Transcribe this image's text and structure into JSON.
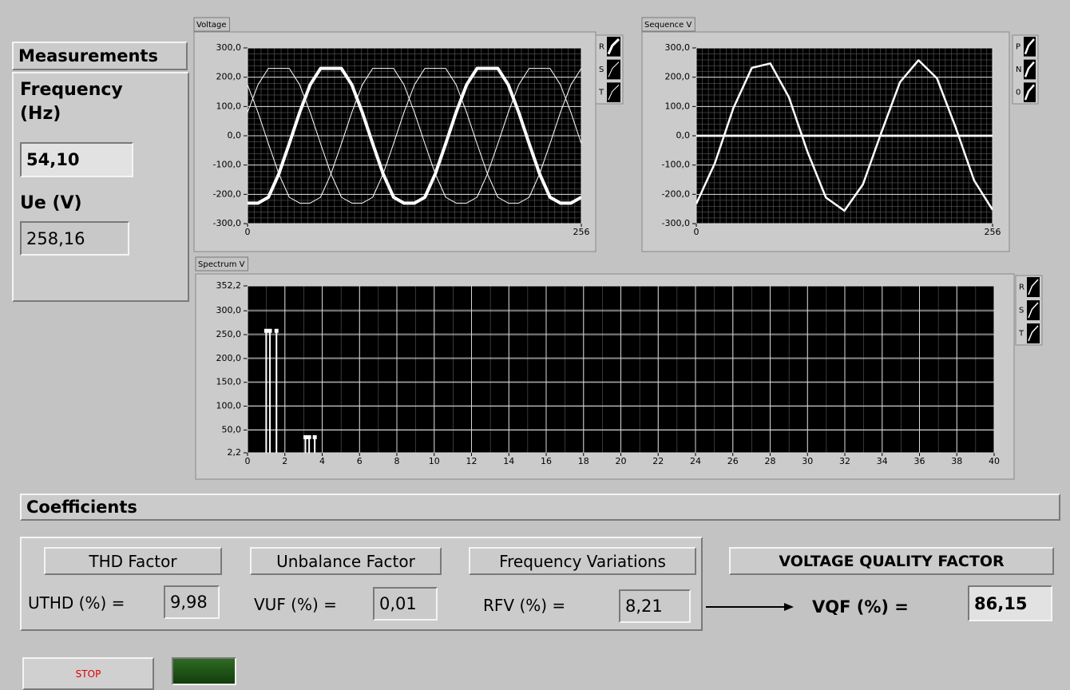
{
  "measurements": {
    "title": "Measurements",
    "frequency": {
      "label": "Frequency (Hz)",
      "value": "54,10"
    },
    "ue": {
      "label": "Ue (V)",
      "value": "258,16"
    }
  },
  "coefficients": {
    "title": "Coefficients",
    "thd": {
      "title": "THD Factor",
      "label": "UTHD (%) =",
      "value": "9,98"
    },
    "vuf": {
      "title": "Unbalance Factor",
      "label": "VUF (%) =",
      "value": "0,01"
    },
    "rfv": {
      "title": "Frequency Variations",
      "label": "RFV (%) =",
      "value": "8,21"
    },
    "vqf": {
      "title": "VOLTAGE QUALITY FACTOR",
      "label": "VQF (%) =",
      "value": "86,15"
    }
  },
  "stop_button": "STOP",
  "chart_data": [
    {
      "type": "line",
      "title": "Voltage",
      "x": [
        0,
        8,
        16,
        24,
        32,
        40,
        48,
        56,
        64,
        72,
        80,
        88,
        96,
        104,
        112,
        120,
        128,
        136,
        144,
        152,
        160,
        168,
        176,
        184,
        192,
        200,
        208,
        216,
        224,
        232,
        240,
        248,
        256
      ],
      "xlim": [
        0,
        256
      ],
      "xticks": [
        0,
        256
      ],
      "ylim": [
        -300,
        300
      ],
      "yticks": [
        {
          "value": -300,
          "label": "-300,0"
        },
        {
          "value": -200,
          "label": "-200,0"
        },
        {
          "value": -100,
          "label": "-100,0"
        },
        {
          "value": 0,
          "label": "0,0"
        },
        {
          "value": 100,
          "label": "100,0"
        },
        {
          "value": 200,
          "label": "200,0"
        },
        {
          "value": 300,
          "label": "300,0"
        }
      ],
      "grid": true,
      "series": [
        {
          "name": "R",
          "color": "#ffffff",
          "line_width": 4,
          "values": [
            -230,
            -230,
            -210,
            -130,
            -27,
            80,
            174,
            230,
            230,
            230,
            174,
            80,
            -27,
            -130,
            -210,
            -230,
            -230,
            -210,
            -130,
            -27,
            80,
            174,
            230,
            230,
            230,
            174,
            80,
            -27,
            -130,
            -210,
            -230,
            -230,
            -210
          ]
        },
        {
          "name": "S",
          "color": "#ffffff",
          "line_width": 1,
          "values": [
            174,
            80,
            -27,
            -130,
            -210,
            -230,
            -230,
            -210,
            -130,
            -27,
            80,
            174,
            230,
            230,
            230,
            174,
            80,
            -27,
            -130,
            -210,
            -230,
            -230,
            -210,
            -130,
            -27,
            80,
            174,
            230,
            230,
            230,
            174,
            80,
            -27
          ]
        },
        {
          "name": "T",
          "color": "#ffffff",
          "line_width": 1,
          "values": [
            80,
            174,
            230,
            230,
            230,
            174,
            80,
            -27,
            -130,
            -210,
            -230,
            -230,
            -210,
            -130,
            -27,
            80,
            174,
            230,
            230,
            230,
            174,
            80,
            -27,
            -130,
            -210,
            -230,
            -230,
            -210,
            -130,
            -27,
            80,
            174,
            230
          ]
        }
      ]
    },
    {
      "type": "line",
      "title": "Sequence V",
      "x": [
        0,
        16,
        32,
        48,
        64,
        80,
        96,
        112,
        128,
        144,
        160,
        176,
        192,
        208,
        224,
        240,
        256
      ],
      "xlim": [
        0,
        256
      ],
      "xticks": [
        0,
        256
      ],
      "ylim": [
        -300,
        300
      ],
      "yticks": [
        {
          "value": -300,
          "label": "-300,0"
        },
        {
          "value": -200,
          "label": "-200,0"
        },
        {
          "value": -100,
          "label": "-100,0"
        },
        {
          "value": 0,
          "label": "0,0"
        },
        {
          "value": 100,
          "label": "100,0"
        },
        {
          "value": 200,
          "label": "200,0"
        },
        {
          "value": 300,
          "label": "300,0"
        }
      ],
      "grid": true,
      "series": [
        {
          "name": "P",
          "color": "#ffffff",
          "line_width": 2.5,
          "values": [
            -232,
            -94,
            94,
            232,
            247,
            132,
            -54,
            -211,
            -256,
            -166,
            12,
            183,
            258,
            196,
            30,
            -152,
            -253
          ]
        },
        {
          "name": "N",
          "color": "#ffffff",
          "line_width": 2.5,
          "values": [
            0,
            0,
            0,
            0,
            0,
            0,
            0,
            0,
            0,
            0,
            0,
            0,
            0,
            0,
            0,
            0,
            0
          ]
        },
        {
          "name": "0",
          "color": "#ffffff",
          "line_width": 2.5,
          "values": [
            0,
            0,
            0,
            0,
            0,
            0,
            0,
            0,
            0,
            0,
            0,
            0,
            0,
            0,
            0,
            0,
            0
          ]
        }
      ]
    },
    {
      "type": "bar",
      "title": "Spectrum V",
      "x": [
        1,
        1.2,
        1.55,
        3.1,
        3.3,
        3.6
      ],
      "xlim": [
        0,
        40
      ],
      "xticks": [
        0,
        2,
        4,
        6,
        8,
        10,
        12,
        14,
        16,
        18,
        20,
        22,
        24,
        26,
        28,
        30,
        32,
        34,
        36,
        38,
        40
      ],
      "ylim": [
        2.2,
        352.2
      ],
      "yticks": [
        {
          "value": 2.2,
          "label": "2,2"
        },
        {
          "value": 50,
          "label": "50,0"
        },
        {
          "value": 100,
          "label": "100,0"
        },
        {
          "value": 150,
          "label": "150,0"
        },
        {
          "value": 200,
          "label": "200,0"
        },
        {
          "value": 250,
          "label": "250,0"
        },
        {
          "value": 300,
          "label": "300,0"
        },
        {
          "value": 352.2,
          "label": "352,2"
        }
      ],
      "grid": true,
      "series": [
        {
          "name": "R",
          "color": "#ffffff",
          "values": [
            258,
            null,
            null,
            35,
            null,
            null
          ]
        },
        {
          "name": "S",
          "color": "#ffffff",
          "values": [
            null,
            258,
            null,
            null,
            35,
            null
          ]
        },
        {
          "name": "T",
          "color": "#ffffff",
          "values": [
            null,
            null,
            258,
            null,
            null,
            35
          ]
        }
      ]
    }
  ]
}
